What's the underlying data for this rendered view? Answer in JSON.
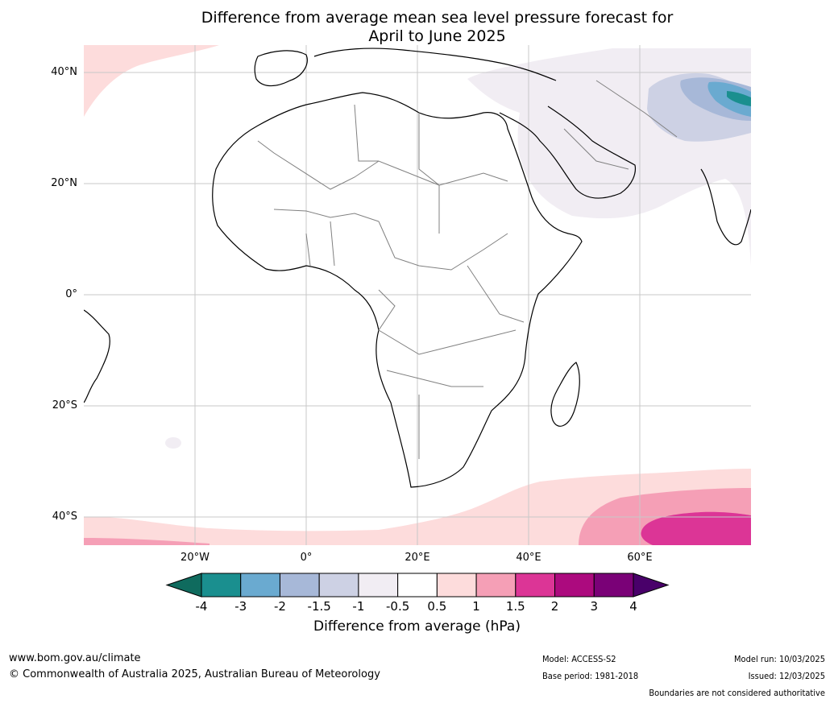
{
  "title": {
    "line1": "Difference from average mean sea level pressure forecast for",
    "line2": "April to June 2025"
  },
  "map": {
    "lat_labels": [
      "40°N",
      "20°N",
      "0°",
      "20°S",
      "40°S"
    ],
    "lon_labels": [
      "20°W",
      "0°",
      "20°E",
      "40°E",
      "60°E"
    ],
    "land_color": "#ffffff",
    "grid_color": "#c8c8c8"
  },
  "colorbar": {
    "ticks": [
      "-4",
      "-3",
      "-2",
      "-1.5",
      "-1",
      "-0.5",
      "0.5",
      "1",
      "1.5",
      "2",
      "3",
      "4"
    ],
    "colors": [
      "#1a8f8f",
      "#6aaad0",
      "#a7b8d8",
      "#cdd1e4",
      "#f1edf3",
      "#ffffff",
      "#fddcdc",
      "#f59fb6",
      "#dc3596",
      "#ac0a7e",
      "#7a0177"
    ],
    "under_color": "#0f6b5e",
    "over_color": "#49006a",
    "label": "Difference from average (hPa)"
  },
  "footer": {
    "website": "www.bom.gov.au/climate",
    "copyright": "© Commonwealth of Australia 2025, Australian Bureau of Meteorology",
    "model": "Model: ACCESS-S2",
    "base_period": "Base period: 1981-2018",
    "model_run": "Model run: 10/03/2025",
    "issued": "Issued: 12/03/2025",
    "disclaimer": "Boundaries are not considered authoritative"
  }
}
